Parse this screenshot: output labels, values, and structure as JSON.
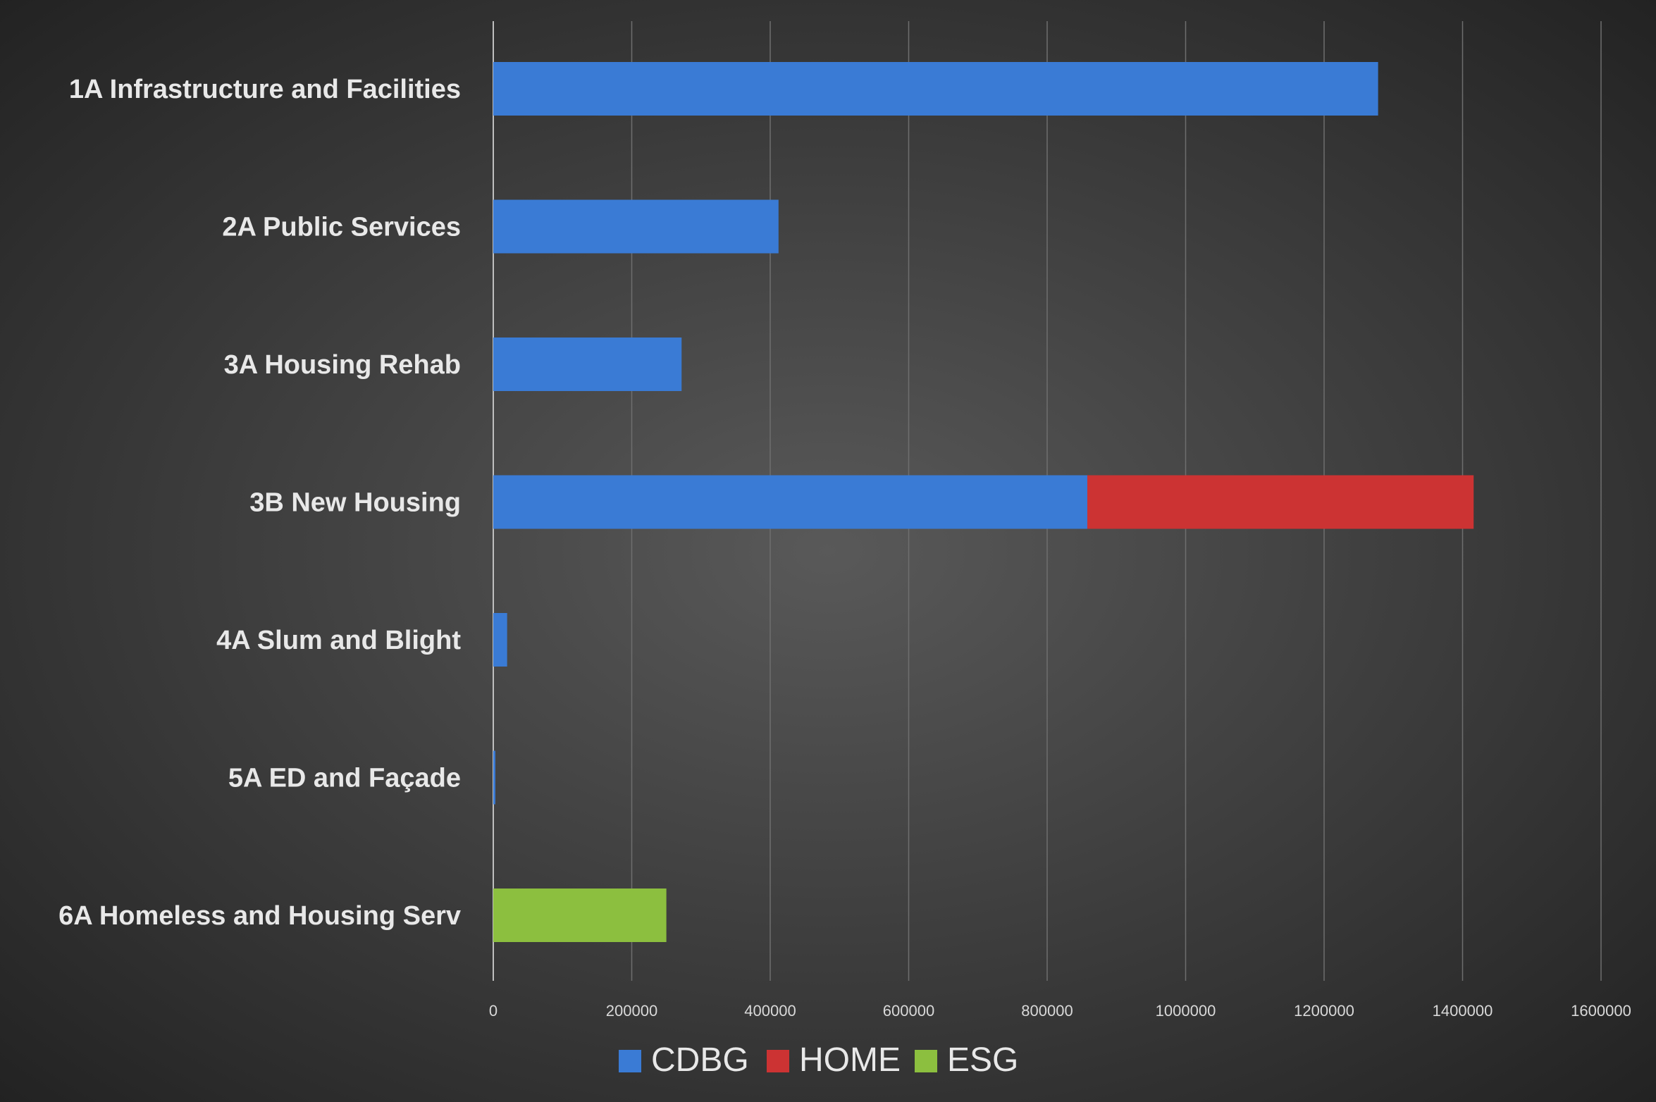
{
  "chart_data": {
    "type": "bar",
    "orientation": "horizontal",
    "stacked": true,
    "title": "",
    "xlabel": "",
    "ylabel": "",
    "categories": [
      "1A Infrastructure and Facilities",
      "2A Public Services",
      "3A Housing Rehab",
      "3B New Housing",
      "4A Slum and Blight",
      "5A ED and Façade",
      "6A Homeless and Housing Serv"
    ],
    "series": [
      {
        "name": "CDBG",
        "color": "#3a7bd5",
        "values": [
          1278000,
          412000,
          272000,
          858000,
          20000,
          3000,
          0
        ]
      },
      {
        "name": "HOME",
        "color": "#cc3333",
        "values": [
          0,
          0,
          0,
          558000,
          0,
          0,
          0
        ]
      },
      {
        "name": "ESG",
        "color": "#8cbf3f",
        "values": [
          0,
          0,
          0,
          0,
          0,
          0,
          250000
        ]
      }
    ],
    "xlim": [
      0,
      1600000
    ],
    "xticks": [
      "0",
      "200000",
      "400000",
      "600000",
      "800000",
      "1000000",
      "1200000",
      "1400000",
      "1600000"
    ],
    "grid": true,
    "legend_position": "bottom"
  }
}
